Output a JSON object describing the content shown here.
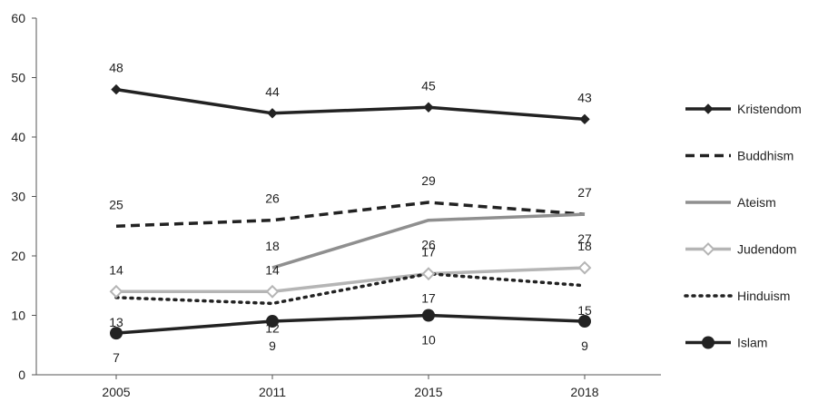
{
  "chart_data": {
    "type": "line",
    "categories": [
      "2005",
      "2011",
      "2015",
      "2018"
    ],
    "ylim": [
      0,
      60
    ],
    "yticks": [
      "0",
      "10",
      "20",
      "30",
      "40",
      "50",
      "60"
    ],
    "grid": false,
    "legend_position": "right",
    "series": [
      {
        "name": "Kristendom",
        "values": [
          48,
          44,
          45,
          43
        ],
        "labels": [
          "48",
          "44",
          "45",
          "43"
        ],
        "color": "#222222",
        "dash": "solid",
        "marker": "diamond-filled",
        "label_pos": [
          "above",
          "above",
          "above",
          "above"
        ]
      },
      {
        "name": "Buddhism",
        "values": [
          25,
          26,
          29,
          27
        ],
        "labels": [
          "25",
          "26",
          "29",
          "27"
        ],
        "color": "#222222",
        "dash": "dashed",
        "marker": "none",
        "label_pos": [
          "above",
          "above",
          "above",
          "above"
        ]
      },
      {
        "name": "Ateism",
        "values": [
          null,
          18,
          26,
          27
        ],
        "labels": [
          "",
          "18",
          "26",
          "27"
        ],
        "color": "#8f8f8f",
        "dash": "solid",
        "marker": "none",
        "label_pos": [
          "none",
          "above",
          "below",
          "below"
        ]
      },
      {
        "name": "Judendom",
        "values": [
          14,
          14,
          17,
          18
        ],
        "labels": [
          "14",
          "14",
          "17",
          "18"
        ],
        "color": "#b5b5b5",
        "dash": "solid",
        "marker": "diamond-open",
        "label_pos": [
          "above",
          "above",
          "above",
          "above"
        ]
      },
      {
        "name": "Hinduism",
        "values": [
          13,
          12,
          17,
          15
        ],
        "labels": [
          "13",
          "12",
          "17",
          "15"
        ],
        "color": "#222222",
        "dash": "dotted",
        "marker": "none",
        "label_pos": [
          "below",
          "below",
          "below",
          "below"
        ]
      },
      {
        "name": "Islam",
        "values": [
          7,
          9,
          10,
          9
        ],
        "labels": [
          "7",
          "9",
          "10",
          "9"
        ],
        "color": "#222222",
        "dash": "solid",
        "marker": "circle-filled",
        "label_pos": [
          "below",
          "below",
          "below",
          "below"
        ]
      }
    ]
  }
}
